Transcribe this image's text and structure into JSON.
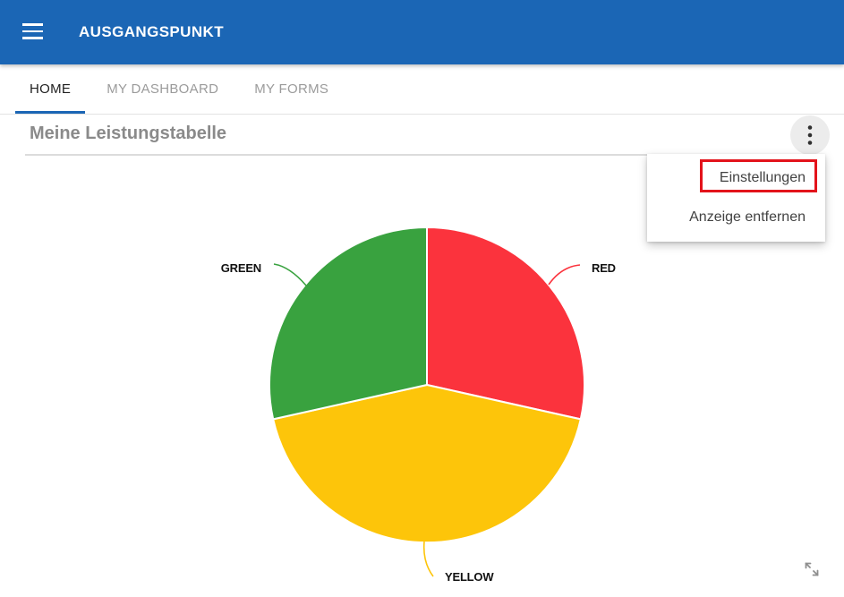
{
  "app": {
    "title": "AUSGANGSPUNKT"
  },
  "tabs": [
    {
      "label": "HOME",
      "active": true
    },
    {
      "label": "MY DASHBOARD",
      "active": false
    },
    {
      "label": "MY FORMS",
      "active": false
    }
  ],
  "widget": {
    "title": "Meine Leistungstabelle",
    "menu": {
      "items": [
        {
          "label": "Einstellungen",
          "highlighted": true
        },
        {
          "label": "Anzeige entfernen",
          "highlighted": false
        }
      ]
    }
  },
  "chart_data": {
    "type": "pie",
    "title": "Meine Leistungstabelle",
    "labels": [
      "RED",
      "YELLOW",
      "GREEN"
    ],
    "values": [
      28.5,
      43.0,
      28.5
    ],
    "colors": [
      "#fb333d",
      "#fdc50a",
      "#39a23f"
    ],
    "start_angle_deg": 0,
    "direction": "clockwise",
    "legend": false,
    "label_style": "outside-with-leader-lines"
  },
  "colors": {
    "header_bg": "#1b66b5",
    "tab_underline": "#1b66b5",
    "tab_active": "#1f1f1f",
    "tab_inactive": "#9b9b9b",
    "title_gray": "#8a8a8a",
    "separator": "#dcdcdc",
    "menu_circle_bg": "#ececec",
    "menu_text": "#424242",
    "highlight_border": "#e3131b",
    "label_black": "#111111",
    "resize_icon": "#8f8f8f"
  },
  "icons": {
    "hamburger": "menu-icon",
    "dots": "vertical-ellipsis-icon",
    "resize": "diagonal-resize-icon"
  }
}
